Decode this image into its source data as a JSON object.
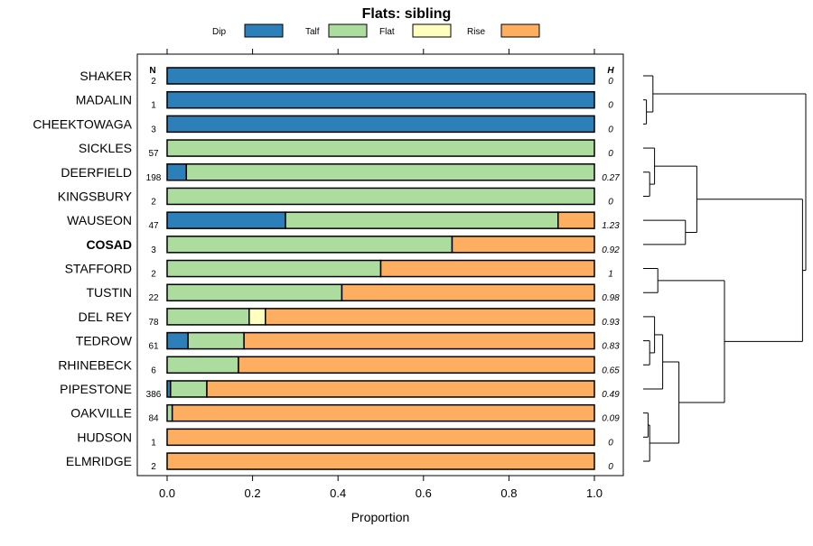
{
  "chart_data": {
    "type": "bar",
    "orientation": "horizontal-stacked",
    "title": "Flats: sibling",
    "xlabel": "Proportion",
    "xlim": [
      0,
      1
    ],
    "xticks": [
      "0.0",
      "0.2",
      "0.4",
      "0.6",
      "0.8",
      "1.0"
    ],
    "xtick_values": [
      0,
      0.2,
      0.4,
      0.6,
      0.8,
      1.0
    ],
    "legend_position": "top",
    "n_header": "N",
    "h_header": "H",
    "series": [
      {
        "name": "Dip",
        "color": "#2c7fb8"
      },
      {
        "name": "Talf",
        "color": "#addd9e"
      },
      {
        "name": "Flat",
        "color": "#ffffbf"
      },
      {
        "name": "Rise",
        "color": "#fdae61"
      }
    ],
    "rows": [
      {
        "label": "SHAKER",
        "n": "2",
        "h": "0",
        "bold": false,
        "values": [
          1,
          0,
          0,
          0
        ]
      },
      {
        "label": "MADALIN",
        "n": "1",
        "h": "0",
        "bold": false,
        "values": [
          1,
          0,
          0,
          0
        ]
      },
      {
        "label": "CHEEKTOWAGA",
        "n": "3",
        "h": "0",
        "bold": false,
        "values": [
          1,
          0,
          0,
          0
        ]
      },
      {
        "label": "SICKLES",
        "n": "57",
        "h": "0",
        "bold": false,
        "values": [
          0,
          1,
          0,
          0
        ]
      },
      {
        "label": "DEERFIELD",
        "n": "198",
        "h": "0.27",
        "bold": false,
        "values": [
          0.045,
          0.955,
          0,
          0
        ]
      },
      {
        "label": "KINGSBURY",
        "n": "2",
        "h": "0",
        "bold": false,
        "values": [
          0,
          1,
          0,
          0
        ]
      },
      {
        "label": "WAUSEON",
        "n": "47",
        "h": "1.23",
        "bold": false,
        "values": [
          0.277,
          0.638,
          0,
          0.085
        ]
      },
      {
        "label": "COSAD",
        "n": "3",
        "h": "0.92",
        "bold": true,
        "values": [
          0,
          0.667,
          0,
          0.333
        ]
      },
      {
        "label": "STAFFORD",
        "n": "2",
        "h": "1",
        "bold": false,
        "values": [
          0,
          0.5,
          0,
          0.5
        ]
      },
      {
        "label": "TUSTIN",
        "n": "22",
        "h": "0.98",
        "bold": false,
        "values": [
          0,
          0.409,
          0,
          0.591
        ]
      },
      {
        "label": "DEL REY",
        "n": "78",
        "h": "0.93",
        "bold": false,
        "values": [
          0,
          0.192,
          0.038,
          0.77
        ]
      },
      {
        "label": "TEDROW",
        "n": "61",
        "h": "0.83",
        "bold": false,
        "values": [
          0.049,
          0.131,
          0,
          0.82
        ]
      },
      {
        "label": "RHINEBECK",
        "n": "6",
        "h": "0.65",
        "bold": false,
        "values": [
          0,
          0.167,
          0,
          0.833
        ]
      },
      {
        "label": "PIPESTONE",
        "n": "386",
        "h": "0.49",
        "bold": false,
        "values": [
          0.008,
          0.085,
          0,
          0.907
        ]
      },
      {
        "label": "OAKVILLE",
        "n": "84",
        "h": "0.09",
        "bold": false,
        "values": [
          0,
          0.012,
          0,
          0.988
        ]
      },
      {
        "label": "HUDSON",
        "n": "1",
        "h": "0",
        "bold": false,
        "values": [
          0,
          0,
          0,
          1
        ]
      },
      {
        "label": "ELMRIDGE",
        "n": "2",
        "h": "0",
        "bold": false,
        "values": [
          0,
          0,
          0,
          1
        ]
      }
    ],
    "dendrogram_merges": [
      {
        "id": "c1",
        "children": [
          1,
          2
        ],
        "height": 0.02
      },
      {
        "id": "c2",
        "children": [
          0,
          "c1"
        ],
        "height": 0.06
      },
      {
        "id": "c3",
        "children": [
          4,
          5
        ],
        "height": 0.04
      },
      {
        "id": "c4",
        "children": [
          3,
          "c3"
        ],
        "height": 0.07
      },
      {
        "id": "c5",
        "children": [
          6,
          7
        ],
        "height": 0.26
      },
      {
        "id": "c6",
        "children": [
          "c4",
          "c5"
        ],
        "height": 0.33
      },
      {
        "id": "c7",
        "children": [
          8,
          9
        ],
        "height": 0.09
      },
      {
        "id": "c8",
        "children": [
          11,
          12
        ],
        "height": 0.04
      },
      {
        "id": "c9",
        "children": [
          10,
          "c8"
        ],
        "height": 0.07
      },
      {
        "id": "c10",
        "children": [
          13,
          "c9"
        ],
        "height": 0.12
      },
      {
        "id": "c11",
        "children": [
          14,
          15
        ],
        "height": 0.03
      },
      {
        "id": "c12",
        "children": [
          16,
          "c11"
        ],
        "height": 0.04
      },
      {
        "id": "c13",
        "children": [
          "c10",
          "c12"
        ],
        "height": 0.22
      },
      {
        "id": "c14",
        "children": [
          "c7",
          "c13"
        ],
        "height": 0.5
      },
      {
        "id": "c15",
        "children": [
          "c6",
          "c14"
        ],
        "height": 0.98
      },
      {
        "id": "c16",
        "children": [
          "c2",
          "c15"
        ],
        "height": 1.0
      }
    ]
  }
}
